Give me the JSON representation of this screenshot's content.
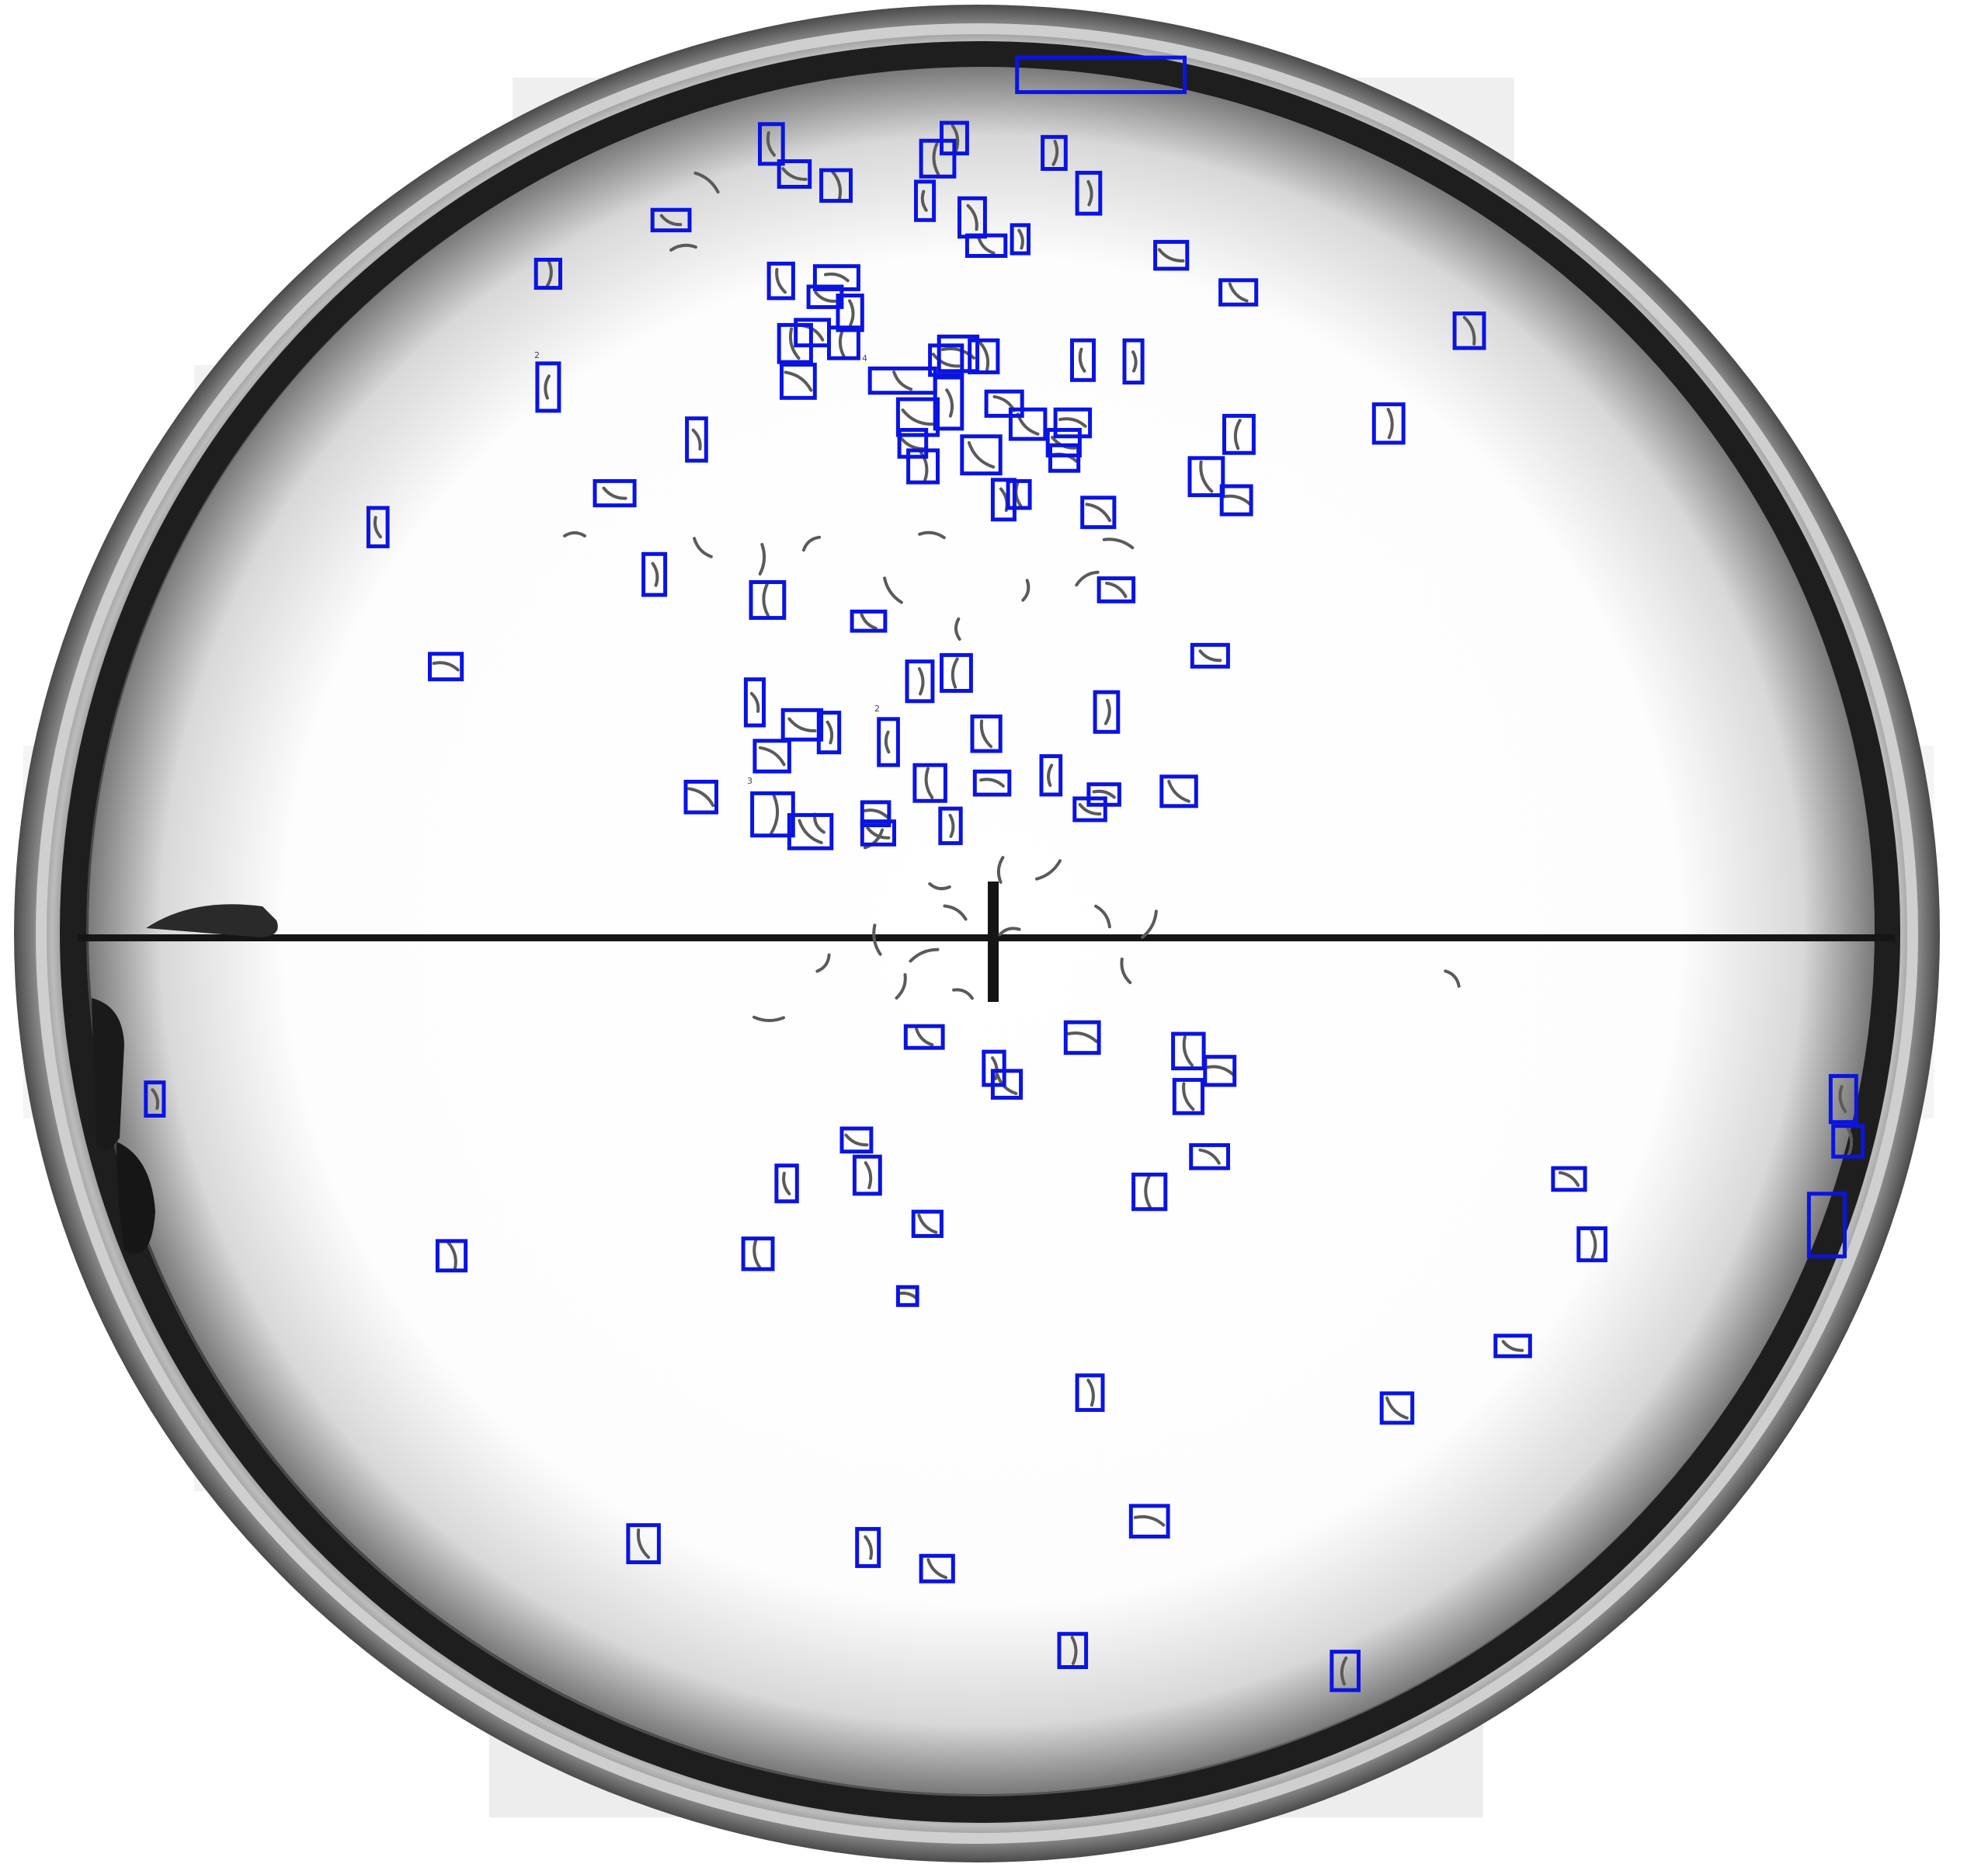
{
  "image": {
    "subject": "petri-dish",
    "colors": {
      "background": "#ffffff",
      "dish_rim": "#2a2a2a",
      "dish_floor": "#ffffff",
      "worm": "#5a5a5a",
      "scale_bar": "#151515",
      "annotation_box": "#0a14e0"
    }
  },
  "annotations": {
    "box_count": 110,
    "box_label": "detection-box"
  },
  "marks": {
    "numbers": [
      "2",
      "4",
      "3",
      "2"
    ]
  }
}
